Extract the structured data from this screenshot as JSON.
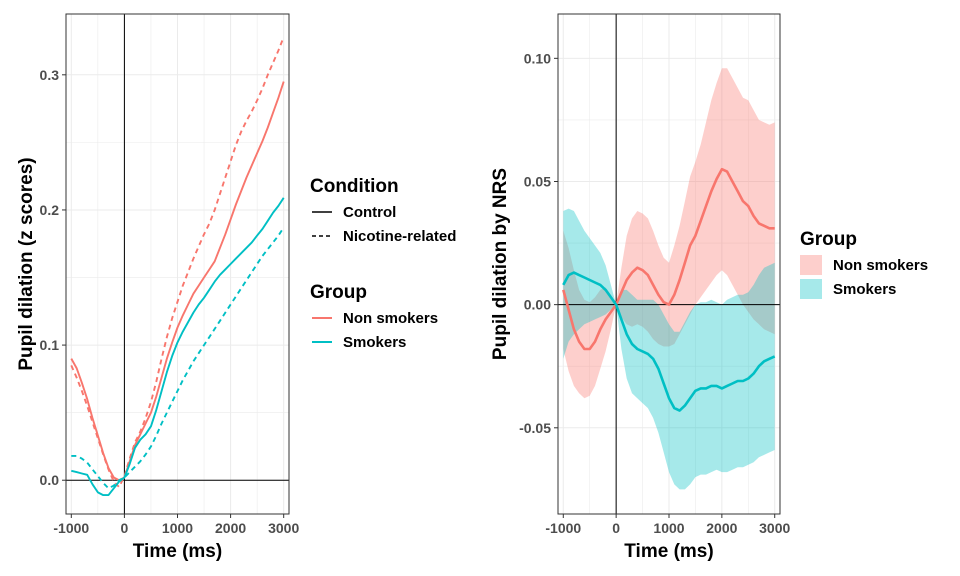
{
  "chart_data": [
    {
      "type": "line",
      "xlabel": "Time (ms)",
      "ylabel": "Pupil dilation (z scores)",
      "xlim": [
        -1100,
        3100
      ],
      "ylim": [
        -0.025,
        0.345
      ],
      "xticks": [
        -1000,
        0,
        1000,
        2000,
        3000
      ],
      "xtick_labels": [
        "-1000",
        "0",
        "1000",
        "2000",
        "3000"
      ],
      "yticks": [
        0.0,
        0.1,
        0.2,
        0.3
      ],
      "ytick_labels": [
        "0.0",
        "0.1",
        "0.2",
        "0.3"
      ],
      "grid": true,
      "reference_lines": {
        "x": 0,
        "y": 0
      },
      "legend_position": "right",
      "legends": [
        {
          "title": "Condition",
          "entries": [
            {
              "label": "Control",
              "linetype": "solid"
            },
            {
              "label": "Nicotine-related",
              "linetype": "dashed"
            }
          ]
        },
        {
          "title": "Group",
          "entries": [
            {
              "label": "Non smokers",
              "color": "#F8766D"
            },
            {
              "label": "Smokers",
              "color": "#00BFC4"
            }
          ]
        }
      ],
      "series": [
        {
          "group": "Non smokers",
          "condition": "Control",
          "color": "#F8766D",
          "linetype": "solid",
          "x": [
            -1000,
            -900,
            -800,
            -700,
            -600,
            -500,
            -400,
            -300,
            -200,
            -100,
            0,
            100,
            200,
            300,
            400,
            500,
            600,
            700,
            800,
            900,
            1000,
            1100,
            1200,
            1300,
            1400,
            1500,
            1600,
            1700,
            1800,
            1900,
            2000,
            2100,
            2200,
            2300,
            2400,
            2500,
            2600,
            2700,
            2800,
            2900,
            3000
          ],
          "y": [
            0.09,
            0.083,
            0.072,
            0.06,
            0.046,
            0.033,
            0.02,
            0.009,
            0.002,
            0.0,
            0.002,
            0.014,
            0.026,
            0.034,
            0.042,
            0.05,
            0.062,
            0.076,
            0.09,
            0.102,
            0.113,
            0.122,
            0.13,
            0.138,
            0.144,
            0.15,
            0.156,
            0.162,
            0.172,
            0.182,
            0.193,
            0.204,
            0.214,
            0.224,
            0.233,
            0.242,
            0.251,
            0.261,
            0.272,
            0.283,
            0.295
          ]
        },
        {
          "group": "Non smokers",
          "condition": "Nicotine-related",
          "color": "#F8766D",
          "linetype": "dashed",
          "x": [
            -1000,
            -900,
            -800,
            -700,
            -600,
            -500,
            -400,
            -300,
            -200,
            -100,
            0,
            100,
            200,
            300,
            400,
            500,
            600,
            700,
            800,
            900,
            1000,
            1100,
            1200,
            1300,
            1400,
            1500,
            1600,
            1700,
            1800,
            1900,
            2000,
            2100,
            2200,
            2300,
            2400,
            2500,
            2600,
            2700,
            2800,
            2900,
            3000
          ],
          "y": [
            0.085,
            0.076,
            0.066,
            0.055,
            0.043,
            0.031,
            0.019,
            0.008,
            -0.001,
            -0.005,
            0.003,
            0.016,
            0.028,
            0.036,
            0.046,
            0.058,
            0.073,
            0.09,
            0.106,
            0.12,
            0.132,
            0.144,
            0.154,
            0.164,
            0.173,
            0.182,
            0.19,
            0.2,
            0.212,
            0.224,
            0.236,
            0.248,
            0.258,
            0.266,
            0.273,
            0.281,
            0.29,
            0.3,
            0.309,
            0.318,
            0.328
          ]
        },
        {
          "group": "Smokers",
          "condition": "Control",
          "color": "#00BFC4",
          "linetype": "solid",
          "x": [
            -1000,
            -900,
            -800,
            -700,
            -600,
            -500,
            -400,
            -300,
            -200,
            -100,
            0,
            100,
            200,
            300,
            400,
            500,
            600,
            700,
            800,
            900,
            1000,
            1100,
            1200,
            1300,
            1400,
            1500,
            1600,
            1700,
            1800,
            1900,
            2000,
            2100,
            2200,
            2300,
            2400,
            2500,
            2600,
            2700,
            2800,
            2900,
            3000
          ],
          "y": [
            0.007,
            0.006,
            0.005,
            0.004,
            -0.003,
            -0.009,
            -0.011,
            -0.011,
            -0.006,
            -0.001,
            0.002,
            0.012,
            0.024,
            0.03,
            0.034,
            0.04,
            0.052,
            0.066,
            0.08,
            0.092,
            0.102,
            0.11,
            0.117,
            0.124,
            0.13,
            0.135,
            0.141,
            0.147,
            0.152,
            0.156,
            0.16,
            0.164,
            0.168,
            0.172,
            0.176,
            0.181,
            0.186,
            0.192,
            0.198,
            0.203,
            0.209
          ]
        },
        {
          "group": "Smokers",
          "condition": "Nicotine-related",
          "color": "#00BFC4",
          "linetype": "dashed",
          "x": [
            -1000,
            -900,
            -800,
            -700,
            -600,
            -500,
            -400,
            -300,
            -200,
            -100,
            0,
            100,
            200,
            300,
            400,
            500,
            600,
            700,
            800,
            900,
            1000,
            1100,
            1200,
            1300,
            1400,
            1500,
            1600,
            1700,
            1800,
            1900,
            2000,
            2100,
            2200,
            2300,
            2400,
            2500,
            2600,
            2700,
            2800,
            2900,
            3000
          ],
          "y": [
            0.018,
            0.018,
            0.016,
            0.013,
            0.008,
            0.003,
            -0.002,
            -0.006,
            -0.004,
            0.0,
            0.002,
            0.006,
            0.01,
            0.014,
            0.019,
            0.025,
            0.033,
            0.042,
            0.05,
            0.058,
            0.066,
            0.074,
            0.081,
            0.088,
            0.094,
            0.1,
            0.106,
            0.112,
            0.118,
            0.124,
            0.13,
            0.136,
            0.142,
            0.148,
            0.154,
            0.16,
            0.166,
            0.171,
            0.176,
            0.181,
            0.187
          ]
        }
      ]
    },
    {
      "type": "area",
      "xlabel": "Time (ms)",
      "ylabel": "Pupil dilation by NRS",
      "xlim": [
        -1100,
        3100
      ],
      "ylim": [
        -0.085,
        0.118
      ],
      "xticks": [
        -1000,
        0,
        1000,
        2000,
        3000
      ],
      "xtick_labels": [
        "-1000",
        "0",
        "1000",
        "2000",
        "3000"
      ],
      "yticks": [
        -0.05,
        0.0,
        0.05,
        0.1
      ],
      "ytick_labels": [
        "-0.05",
        "0.00",
        "0.05",
        "0.10"
      ],
      "grid": true,
      "reference_lines": {
        "x": 0,
        "y": 0
      },
      "legend_position": "right",
      "legends": [
        {
          "title": "Group",
          "entries": [
            {
              "label": "Non smokers",
              "color": "#F8766D"
            },
            {
              "label": "Smokers",
              "color": "#00BFC4"
            }
          ]
        }
      ],
      "series": [
        {
          "group": "Non smokers",
          "color": "#F8766D",
          "fill_opacity": 0.35,
          "x": [
            -1000,
            -900,
            -800,
            -700,
            -600,
            -500,
            -400,
            -300,
            -200,
            -100,
            0,
            100,
            200,
            300,
            400,
            500,
            600,
            700,
            800,
            900,
            1000,
            1100,
            1200,
            1300,
            1400,
            1500,
            1600,
            1700,
            1800,
            1900,
            2000,
            2100,
            2200,
            2300,
            2400,
            2500,
            2600,
            2700,
            2800,
            2900,
            3000
          ],
          "y": [
            0.006,
            -0.002,
            -0.01,
            -0.015,
            -0.018,
            -0.018,
            -0.015,
            -0.01,
            -0.006,
            -0.003,
            0.0,
            0.005,
            0.01,
            0.013,
            0.015,
            0.014,
            0.012,
            0.008,
            0.004,
            0.001,
            0.0,
            0.004,
            0.01,
            0.017,
            0.024,
            0.028,
            0.034,
            0.04,
            0.046,
            0.051,
            0.055,
            0.054,
            0.05,
            0.046,
            0.042,
            0.04,
            0.036,
            0.033,
            0.032,
            0.031,
            0.031
          ],
          "lower": [
            -0.018,
            -0.027,
            -0.033,
            -0.036,
            -0.038,
            -0.037,
            -0.033,
            -0.026,
            -0.019,
            -0.01,
            0.0,
            -0.005,
            -0.008,
            -0.009,
            -0.008,
            -0.009,
            -0.011,
            -0.014,
            -0.016,
            -0.017,
            -0.017,
            -0.016,
            -0.012,
            -0.008,
            -0.004,
            0.0,
            0.003,
            0.006,
            0.009,
            0.012,
            0.014,
            0.012,
            0.008,
            0.004,
            0.0,
            -0.003,
            -0.006,
            -0.008,
            -0.01,
            -0.011,
            -0.012
          ],
          "upper": [
            0.03,
            0.023,
            0.014,
            0.006,
            0.002,
            0.001,
            0.003,
            0.006,
            0.007,
            0.004,
            0.0,
            0.015,
            0.028,
            0.035,
            0.038,
            0.037,
            0.035,
            0.03,
            0.024,
            0.019,
            0.017,
            0.024,
            0.032,
            0.042,
            0.052,
            0.058,
            0.065,
            0.074,
            0.083,
            0.09,
            0.096,
            0.096,
            0.092,
            0.088,
            0.084,
            0.083,
            0.079,
            0.075,
            0.074,
            0.073,
            0.074
          ]
        },
        {
          "group": "Smokers",
          "color": "#00BFC4",
          "fill_opacity": 0.35,
          "x": [
            -1000,
            -900,
            -800,
            -700,
            -600,
            -500,
            -400,
            -300,
            -200,
            -100,
            0,
            100,
            200,
            300,
            400,
            500,
            600,
            700,
            800,
            900,
            1000,
            1100,
            1200,
            1300,
            1400,
            1500,
            1600,
            1700,
            1800,
            1900,
            2000,
            2100,
            2200,
            2300,
            2400,
            2500,
            2600,
            2700,
            2800,
            2900,
            3000
          ],
          "y": [
            0.008,
            0.012,
            0.013,
            0.012,
            0.011,
            0.01,
            0.009,
            0.008,
            0.006,
            0.003,
            0.0,
            -0.006,
            -0.012,
            -0.016,
            -0.018,
            -0.019,
            -0.02,
            -0.022,
            -0.026,
            -0.032,
            -0.038,
            -0.042,
            -0.043,
            -0.041,
            -0.038,
            -0.035,
            -0.034,
            -0.034,
            -0.033,
            -0.033,
            -0.034,
            -0.033,
            -0.032,
            -0.031,
            -0.031,
            -0.03,
            -0.028,
            -0.025,
            -0.023,
            -0.022,
            -0.021
          ],
          "lower": [
            -0.022,
            -0.015,
            -0.012,
            -0.01,
            -0.008,
            -0.007,
            -0.006,
            -0.005,
            -0.004,
            -0.002,
            0.0,
            -0.018,
            -0.03,
            -0.036,
            -0.038,
            -0.04,
            -0.042,
            -0.046,
            -0.052,
            -0.06,
            -0.068,
            -0.073,
            -0.075,
            -0.075,
            -0.073,
            -0.07,
            -0.069,
            -0.069,
            -0.068,
            -0.067,
            -0.068,
            -0.068,
            -0.067,
            -0.066,
            -0.066,
            -0.065,
            -0.064,
            -0.062,
            -0.061,
            -0.06,
            -0.059
          ],
          "upper": [
            0.038,
            0.039,
            0.038,
            0.034,
            0.03,
            0.027,
            0.024,
            0.021,
            0.016,
            0.008,
            0.0,
            0.006,
            0.006,
            0.004,
            0.002,
            0.002,
            0.002,
            0.002,
            0.0,
            -0.004,
            -0.008,
            -0.011,
            -0.011,
            -0.007,
            -0.003,
            0.0,
            0.001,
            0.001,
            0.002,
            0.001,
            0.0,
            0.002,
            0.003,
            0.004,
            0.004,
            0.005,
            0.008,
            0.012,
            0.015,
            0.016,
            0.017
          ]
        }
      ]
    }
  ]
}
